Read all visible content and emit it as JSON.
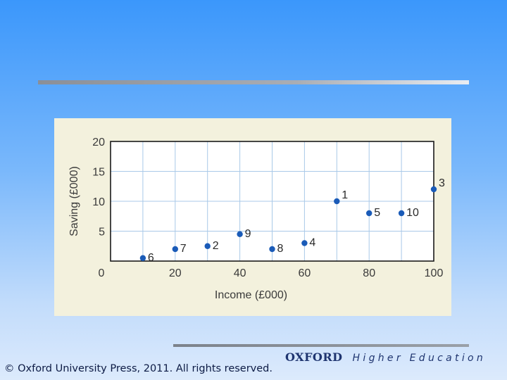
{
  "chart_data": {
    "type": "scatter",
    "xlabel": "Income (£000)",
    "ylabel": "Saving (£000)",
    "xlim": [
      0,
      100
    ],
    "ylim": [
      0,
      20
    ],
    "x_ticks": [
      20,
      40,
      60,
      80,
      100
    ],
    "y_ticks": [
      5,
      10,
      15,
      20
    ],
    "origin_label": "0",
    "grid": true,
    "point_color": "#1a5bb8",
    "points": [
      {
        "label": "1",
        "x": 70,
        "y": 10
      },
      {
        "label": "2",
        "x": 30,
        "y": 2.5
      },
      {
        "label": "3",
        "x": 100,
        "y": 12
      },
      {
        "label": "4",
        "x": 60,
        "y": 3
      },
      {
        "label": "5",
        "x": 80,
        "y": 8
      },
      {
        "label": "6",
        "x": 10,
        "y": 0.5
      },
      {
        "label": "7",
        "x": 20,
        "y": 2
      },
      {
        "label": "8",
        "x": 50,
        "y": 2
      },
      {
        "label": "9",
        "x": 40,
        "y": 4.5
      },
      {
        "label": "10",
        "x": 90,
        "y": 8
      }
    ]
  },
  "footer": {
    "brand_primary": "OXFORD",
    "brand_secondary": "Higher Education",
    "copyright": "© Oxford University Press, 2011. All rights reserved."
  }
}
